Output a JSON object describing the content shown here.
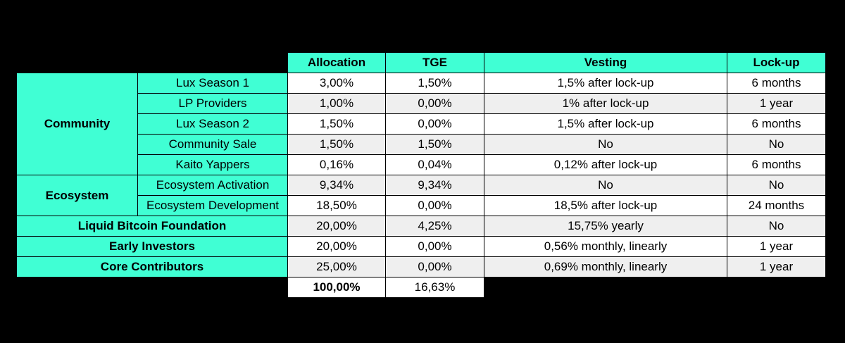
{
  "headers": {
    "allocation": "Allocation",
    "tge": "TGE",
    "vesting": "Vesting",
    "lockup": "Lock-up"
  },
  "groups": {
    "community": "Community",
    "ecosystem": "Ecosystem"
  },
  "rows": [
    {
      "category": "Community",
      "sub": "Lux Season 1",
      "allocation": "3,00%",
      "tge": "1,50%",
      "vesting": "1,5% after lock-up",
      "lockup": "6 months"
    },
    {
      "category": "Community",
      "sub": "LP Providers",
      "allocation": "1,00%",
      "tge": "0,00%",
      "vesting": "1% after lock-up",
      "lockup": "1 year"
    },
    {
      "category": "Community",
      "sub": "Lux Season 2",
      "allocation": "1,50%",
      "tge": "0,00%",
      "vesting": "1,5% after lock-up",
      "lockup": "6 months"
    },
    {
      "category": "Community",
      "sub": "Community Sale",
      "allocation": "1,50%",
      "tge": "1,50%",
      "vesting": "No",
      "lockup": "No"
    },
    {
      "category": "Community",
      "sub": "Kaito Yappers",
      "allocation": "0,16%",
      "tge": "0,04%",
      "vesting": "0,12% after lock-up",
      "lockup": "6 months"
    },
    {
      "category": "Ecosystem",
      "sub": "Ecosystem Activation",
      "allocation": "9,34%",
      "tge": "9,34%",
      "vesting": "No",
      "lockup": "No"
    },
    {
      "category": "Ecosystem",
      "sub": "Ecosystem Development",
      "allocation": "18,50%",
      "tge": "0,00%",
      "vesting": "18,5% after lock-up",
      "lockup": "24 months"
    },
    {
      "category": "Liquid Bitcoin Foundation",
      "sub": "",
      "allocation": "20,00%",
      "tge": "4,25%",
      "vesting": "15,75% yearly",
      "lockup": "No"
    },
    {
      "category": "Early Investors",
      "sub": "",
      "allocation": "20,00%",
      "tge": "0,00%",
      "vesting": "0,56% monthly, linearly",
      "lockup": "1 year"
    },
    {
      "category": "Core Contributors",
      "sub": "",
      "allocation": "25,00%",
      "tge": "0,00%",
      "vesting": "0,69% monthly, linearly",
      "lockup": "1 year"
    }
  ],
  "totals": {
    "allocation": "100,00%",
    "tge": "16,63%"
  }
}
